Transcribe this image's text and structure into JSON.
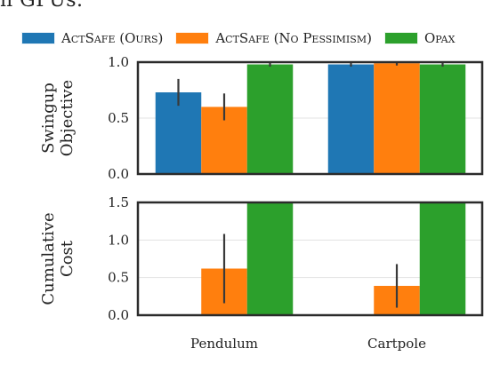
{
  "top_cutoff_text": "n GPUs.",
  "legend": [
    {
      "label": "ActSafe (Ours)",
      "color": "#1f77b4"
    },
    {
      "label": "ActSafe (No Pessimism)",
      "color": "#ff7f0e"
    },
    {
      "label": "Opax",
      "color": "#2ca02c"
    }
  ],
  "chart_data": [
    {
      "type": "bar",
      "ylabel": [
        "Swingup",
        "Objective"
      ],
      "ylim": [
        0.0,
        1.0
      ],
      "yticks": [
        "0.0",
        "0.5",
        "1.0"
      ],
      "categories": [
        "Pendulum",
        "Cartpole"
      ],
      "series": [
        {
          "name": "ActSafe (Ours)",
          "values": [
            0.73,
            0.98
          ],
          "errors": [
            0.12,
            0.02
          ]
        },
        {
          "name": "ActSafe (No Pessimism)",
          "values": [
            0.6,
            0.99
          ],
          "errors": [
            0.12,
            0.02
          ]
        },
        {
          "name": "Opax",
          "values": [
            0.98,
            0.98
          ],
          "errors": [
            0.02,
            0.02
          ]
        }
      ],
      "grid": "y"
    },
    {
      "type": "bar",
      "ylabel": [
        "Cumulative",
        "Cost"
      ],
      "ylim": [
        0.0,
        1.5
      ],
      "yticks": [
        "0.0",
        "0.5",
        "1.0",
        "1.5"
      ],
      "categories": [
        "Pendulum",
        "Cartpole"
      ],
      "series": [
        {
          "name": "ActSafe (Ours)",
          "values": [
            0.0,
            0.0
          ],
          "errors": [
            0,
            0
          ]
        },
        {
          "name": "ActSafe (No Pessimism)",
          "values": [
            0.62,
            0.39
          ],
          "errors": [
            0.46,
            0.29
          ]
        },
        {
          "name": "Opax",
          "values": [
            1.5,
            1.5
          ],
          "errors": [
            0,
            0
          ]
        }
      ],
      "grid": "y"
    }
  ]
}
